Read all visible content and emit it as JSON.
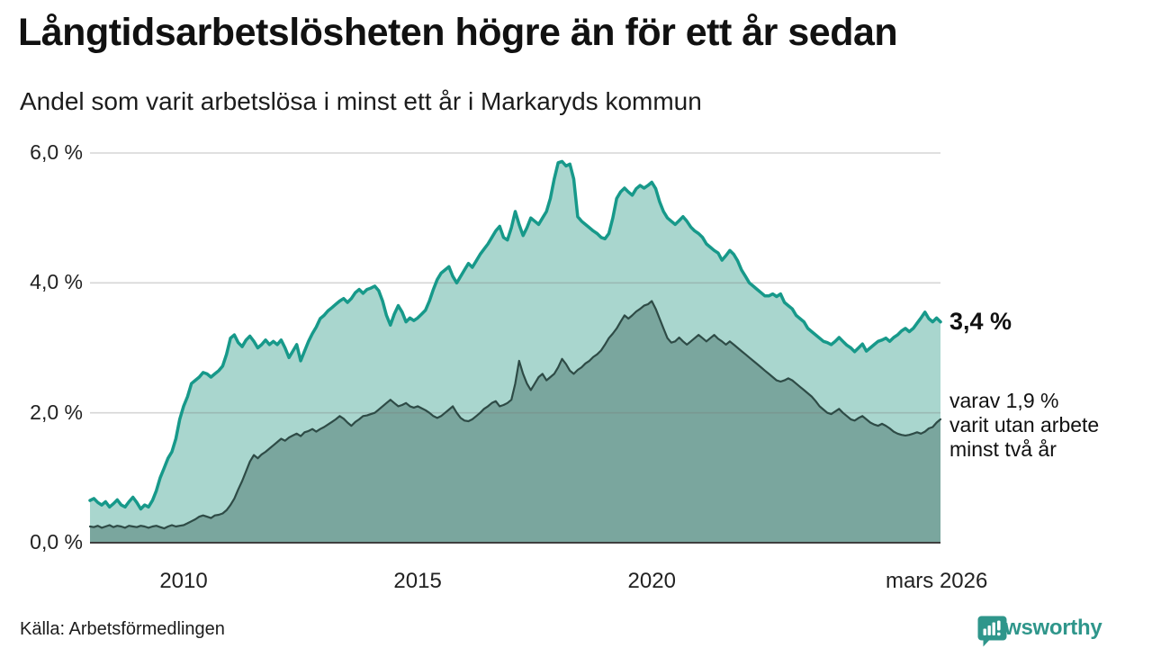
{
  "header": {
    "title": "Långtidsarbetslösheten högre än för ett år sedan",
    "subtitle": "Andel som varit arbetslösa i minst ett år i Markaryds kommun"
  },
  "annotations": {
    "latest_value": "3,4 %",
    "two_year_lines": [
      "varav 1,9 %",
      "varit utan arbete",
      "minst två år"
    ]
  },
  "footer": {
    "source": "Källa: Arbetsförmedlingen",
    "brand": "Newsworthy",
    "brand_color": "#2f968b"
  },
  "chart_data": {
    "type": "area",
    "title": "Långtidsarbetslösheten högre än för ett år sedan",
    "subtitle": "Andel som varit arbetslösa i minst ett år i Markaryds kommun",
    "unit": "%",
    "frequency": "monthly",
    "x_start": "2008-01",
    "x_end": "2026-03",
    "ylim": [
      0,
      6
    ],
    "grid": true,
    "yticks": [
      {
        "value": 0,
        "label": "0,0 %"
      },
      {
        "value": 2,
        "label": "2,0 %"
      },
      {
        "value": 4,
        "label": "4,0 %"
      },
      {
        "value": 6,
        "label": "6,0 %"
      }
    ],
    "xticks": [
      {
        "index": 24,
        "label": "2010"
      },
      {
        "index": 84,
        "label": "2015"
      },
      {
        "index": 144,
        "label": "2020"
      },
      {
        "index": 217,
        "label": "mars 2026"
      }
    ],
    "series": [
      {
        "name": "Andel arbetslösa minst ett år",
        "line_color": "#17998a",
        "fill_color": "#a9d6ce",
        "line_width": 3.5,
        "latest_value": 3.4,
        "values": [
          0.65,
          0.68,
          0.62,
          0.58,
          0.63,
          0.55,
          0.6,
          0.66,
          0.58,
          0.55,
          0.63,
          0.7,
          0.62,
          0.52,
          0.58,
          0.55,
          0.65,
          0.8,
          1.0,
          1.15,
          1.3,
          1.4,
          1.6,
          1.9,
          2.1,
          2.25,
          2.45,
          2.5,
          2.55,
          2.62,
          2.6,
          2.55,
          2.6,
          2.65,
          2.72,
          2.9,
          3.15,
          3.2,
          3.08,
          3.02,
          3.12,
          3.18,
          3.1,
          3.0,
          3.05,
          3.12,
          3.05,
          3.1,
          3.05,
          3.12,
          3.0,
          2.85,
          2.95,
          3.05,
          2.8,
          2.95,
          3.1,
          3.22,
          3.32,
          3.45,
          3.5,
          3.57,
          3.62,
          3.67,
          3.72,
          3.76,
          3.7,
          3.76,
          3.85,
          3.9,
          3.84,
          3.9,
          3.92,
          3.95,
          3.88,
          3.72,
          3.5,
          3.35,
          3.52,
          3.65,
          3.55,
          3.4,
          3.46,
          3.42,
          3.46,
          3.52,
          3.58,
          3.72,
          3.9,
          4.05,
          4.15,
          4.2,
          4.25,
          4.1,
          4.0,
          4.1,
          4.2,
          4.3,
          4.24,
          4.34,
          4.44,
          4.52,
          4.6,
          4.7,
          4.8,
          4.87,
          4.7,
          4.66,
          4.85,
          5.1,
          4.9,
          4.73,
          4.85,
          5.0,
          4.95,
          4.9,
          5.0,
          5.1,
          5.3,
          5.6,
          5.85,
          5.87,
          5.8,
          5.83,
          5.6,
          5.02,
          4.95,
          4.9,
          4.85,
          4.8,
          4.76,
          4.7,
          4.68,
          4.76,
          5.0,
          5.3,
          5.4,
          5.46,
          5.4,
          5.35,
          5.45,
          5.5,
          5.46,
          5.5,
          5.55,
          5.45,
          5.25,
          5.1,
          5.0,
          4.95,
          4.9,
          4.96,
          5.02,
          4.95,
          4.86,
          4.8,
          4.76,
          4.7,
          4.6,
          4.55,
          4.5,
          4.46,
          4.35,
          4.42,
          4.5,
          4.44,
          4.34,
          4.2,
          4.1,
          4.0,
          3.95,
          3.9,
          3.85,
          3.8,
          3.8,
          3.83,
          3.79,
          3.83,
          3.7,
          3.65,
          3.6,
          3.5,
          3.45,
          3.4,
          3.3,
          3.25,
          3.2,
          3.15,
          3.1,
          3.08,
          3.05,
          3.1,
          3.16,
          3.1,
          3.04,
          3.0,
          2.94,
          3.0,
          3.06,
          2.95,
          3.0,
          3.05,
          3.1,
          3.12,
          3.15,
          3.1,
          3.16,
          3.2,
          3.26,
          3.3,
          3.25,
          3.3,
          3.38,
          3.46,
          3.55,
          3.45,
          3.4,
          3.46,
          3.4
        ]
      },
      {
        "name": "Varav arbetslösa minst två år",
        "line_color": "#2e4b46",
        "fill_color": "#7aa69e",
        "line_width": 2.2,
        "latest_value": 1.9,
        "values": [
          0.25,
          0.24,
          0.26,
          0.23,
          0.25,
          0.27,
          0.24,
          0.26,
          0.25,
          0.23,
          0.26,
          0.25,
          0.24,
          0.26,
          0.25,
          0.23,
          0.25,
          0.26,
          0.24,
          0.22,
          0.25,
          0.27,
          0.25,
          0.26,
          0.27,
          0.3,
          0.33,
          0.36,
          0.4,
          0.42,
          0.4,
          0.38,
          0.42,
          0.43,
          0.45,
          0.5,
          0.58,
          0.68,
          0.82,
          0.95,
          1.1,
          1.25,
          1.35,
          1.3,
          1.36,
          1.4,
          1.45,
          1.5,
          1.55,
          1.6,
          1.57,
          1.62,
          1.65,
          1.68,
          1.64,
          1.7,
          1.72,
          1.75,
          1.71,
          1.75,
          1.78,
          1.82,
          1.86,
          1.9,
          1.95,
          1.91,
          1.85,
          1.8,
          1.86,
          1.9,
          1.95,
          1.96,
          1.98,
          2.0,
          2.05,
          2.1,
          2.15,
          2.2,
          2.15,
          2.1,
          2.12,
          2.15,
          2.1,
          2.08,
          2.1,
          2.07,
          2.04,
          2.0,
          1.95,
          1.92,
          1.95,
          2.0,
          2.05,
          2.1,
          2.0,
          1.92,
          1.88,
          1.87,
          1.9,
          1.95,
          2.0,
          2.06,
          2.1,
          2.15,
          2.18,
          2.1,
          2.12,
          2.15,
          2.2,
          2.45,
          2.8,
          2.6,
          2.45,
          2.35,
          2.45,
          2.55,
          2.6,
          2.5,
          2.55,
          2.6,
          2.7,
          2.83,
          2.75,
          2.65,
          2.6,
          2.66,
          2.7,
          2.76,
          2.8,
          2.86,
          2.9,
          2.96,
          3.05,
          3.15,
          3.22,
          3.3,
          3.4,
          3.5,
          3.45,
          3.5,
          3.56,
          3.6,
          3.65,
          3.67,
          3.72,
          3.6,
          3.45,
          3.3,
          3.15,
          3.08,
          3.1,
          3.16,
          3.1,
          3.05,
          3.1,
          3.15,
          3.2,
          3.15,
          3.1,
          3.15,
          3.2,
          3.14,
          3.1,
          3.05,
          3.1,
          3.05,
          3.0,
          2.95,
          2.9,
          2.85,
          2.8,
          2.75,
          2.7,
          2.65,
          2.6,
          2.55,
          2.5,
          2.48,
          2.5,
          2.53,
          2.5,
          2.45,
          2.4,
          2.35,
          2.3,
          2.25,
          2.18,
          2.1,
          2.05,
          2.0,
          1.98,
          2.02,
          2.06,
          2.0,
          1.95,
          1.9,
          1.88,
          1.92,
          1.95,
          1.9,
          1.85,
          1.82,
          1.8,
          1.83,
          1.8,
          1.76,
          1.71,
          1.68,
          1.66,
          1.65,
          1.66,
          1.68,
          1.7,
          1.68,
          1.71,
          1.76,
          1.78,
          1.85,
          1.9
        ]
      }
    ],
    "legend_position": "right-annotations",
    "axis_color": "#3f3f3f",
    "gridline_color": "#d7d7d7"
  }
}
